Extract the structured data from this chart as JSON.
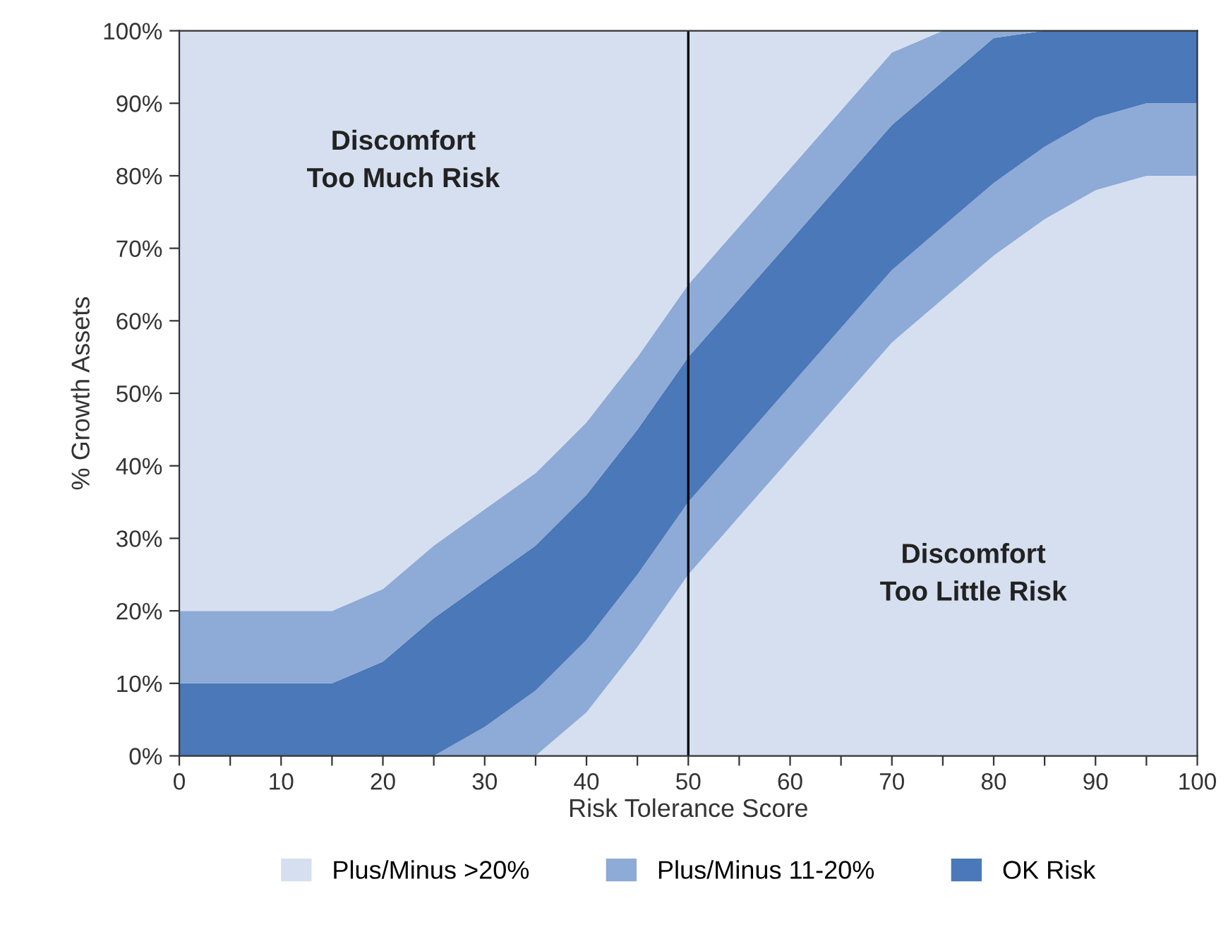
{
  "chart_data": {
    "type": "area",
    "stacked": true,
    "xlabel": "Risk Tolerance Score",
    "ylabel": "% Growth Assets",
    "x": [
      0,
      5,
      10,
      15,
      20,
      25,
      30,
      35,
      40,
      45,
      50,
      55,
      60,
      65,
      70,
      75,
      80,
      85,
      90,
      95,
      100
    ],
    "series": [
      {
        "name": "Plus/Minus >20%",
        "color": "#d5dfef",
        "values": [
          0,
          0,
          0,
          0,
          0,
          0,
          0,
          0,
          6,
          15,
          25,
          33,
          41,
          49,
          57,
          63,
          69,
          74,
          78,
          80,
          80
        ]
      },
      {
        "name": "Plus/Minus 11-20%",
        "color": "#8eaad6",
        "values": [
          0,
          0,
          0,
          0,
          0,
          0,
          4,
          9,
          10,
          10,
          10,
          10,
          10,
          10,
          10,
          10,
          10,
          10,
          10,
          10,
          10
        ]
      },
      {
        "name": "OK Risk",
        "color": "#4a78b8",
        "values": [
          10,
          10,
          10,
          10,
          13,
          19,
          20,
          20,
          20,
          20,
          20,
          20,
          20,
          20,
          20,
          20,
          20,
          16,
          12,
          10,
          10
        ]
      },
      {
        "color": "#8eaad6",
        "values": [
          10,
          10,
          10,
          10,
          10,
          10,
          10,
          10,
          10,
          10,
          10,
          10,
          10,
          10,
          10,
          7,
          1,
          0,
          0,
          0,
          0
        ]
      },
      {
        "color": "#d5dfef",
        "values": [
          80,
          80,
          80,
          80,
          77,
          71,
          66,
          61,
          54,
          45,
          35,
          27,
          19,
          11,
          3,
          0,
          0,
          0,
          0,
          0,
          0
        ]
      }
    ],
    "xlim": [
      0,
      100
    ],
    "xticks": [
      0,
      {
        "value": 5,
        "label": null
      },
      10,
      {
        "value": 15,
        "label": null
      },
      20,
      {
        "value": 25,
        "label": null
      },
      30,
      {
        "value": 35,
        "label": null
      },
      40,
      {
        "value": 45,
        "label": null
      },
      50,
      {
        "value": 55,
        "label": null
      },
      60,
      {
        "value": 65,
        "label": null
      },
      70,
      {
        "value": 75,
        "label": null
      },
      80,
      {
        "value": 85,
        "label": null
      },
      90,
      {
        "value": 95,
        "label": null
      },
      100
    ],
    "ylim": [
      0,
      100
    ],
    "yticks": [
      {
        "value": 0,
        "label": "0%"
      },
      {
        "value": 10,
        "label": "10%"
      },
      {
        "value": 20,
        "label": "20%"
      },
      {
        "value": 30,
        "label": "30%"
      },
      {
        "value": 40,
        "label": "40%"
      },
      {
        "value": 50,
        "label": "50%"
      },
      {
        "value": 60,
        "label": "60%"
      },
      {
        "value": 70,
        "label": "70%"
      },
      {
        "value": 80,
        "label": "80%"
      },
      {
        "value": 90,
        "label": "90%"
      },
      {
        "value": 100,
        "label": "100%"
      }
    ],
    "ref_lines": [
      {
        "axis": "x",
        "value": 50,
        "color": "#000000"
      }
    ],
    "annotations": [
      "Discomfort\nToo Much Risk",
      "Discomfort\nToo Little Risk"
    ],
    "legend": "bottom",
    "grid": false
  }
}
